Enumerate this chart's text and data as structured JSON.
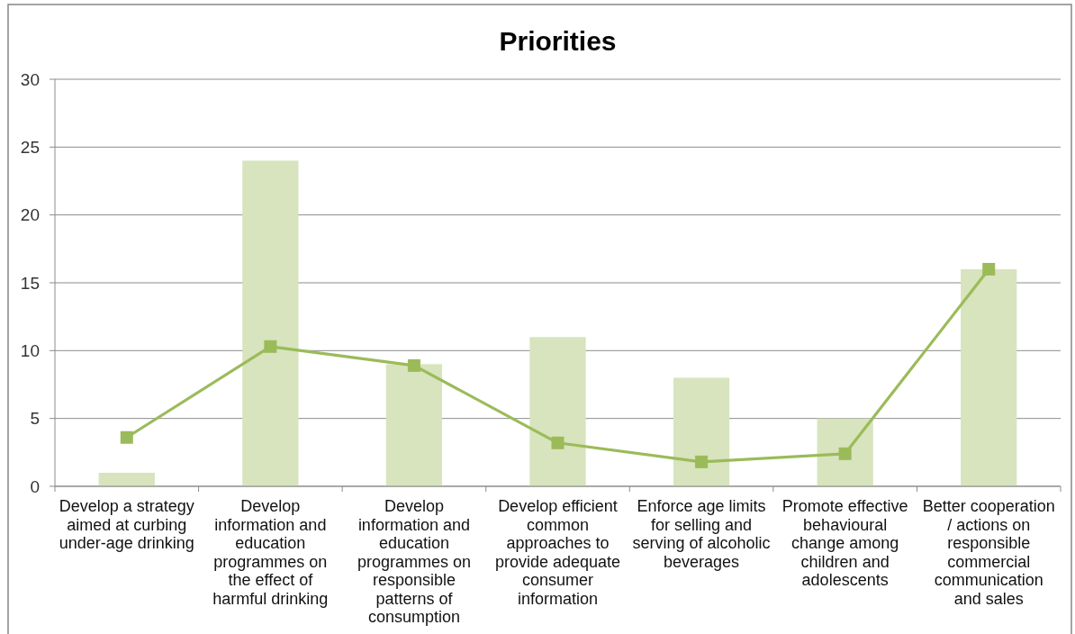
{
  "chart_data": {
    "type": "bar",
    "title": "Priorities",
    "categories": [
      "Develop a strategy aimed at curbing under-age drinking",
      "Develop information and education programmes on the effect of harmful drinking",
      "Develop information and education programmes on responsible patterns of consumption",
      "Develop efficient common approaches to provide adequate consumer information",
      "Enforce age limits for selling and serving of alcoholic beverages",
      "Promote effective behavioural change among children and adolescents",
      "Better cooperation / actions on responsible commercial communication and sales"
    ],
    "series": [
      {
        "color": "#d7e4bd",
        "values": [
          1,
          24,
          9,
          11,
          8,
          5,
          16
        ]
      },
      {
        "type": "line",
        "color": "#9bbb59",
        "marker": "square",
        "line_style": "solid",
        "values": [
          3.6,
          10.3,
          8.9,
          3.2,
          1.8,
          2.4,
          16
        ]
      }
    ],
    "ylim": [
      0,
      30
    ],
    "yticks": [
      0,
      5,
      10,
      15,
      20,
      25,
      30
    ],
    "grid": "y"
  }
}
